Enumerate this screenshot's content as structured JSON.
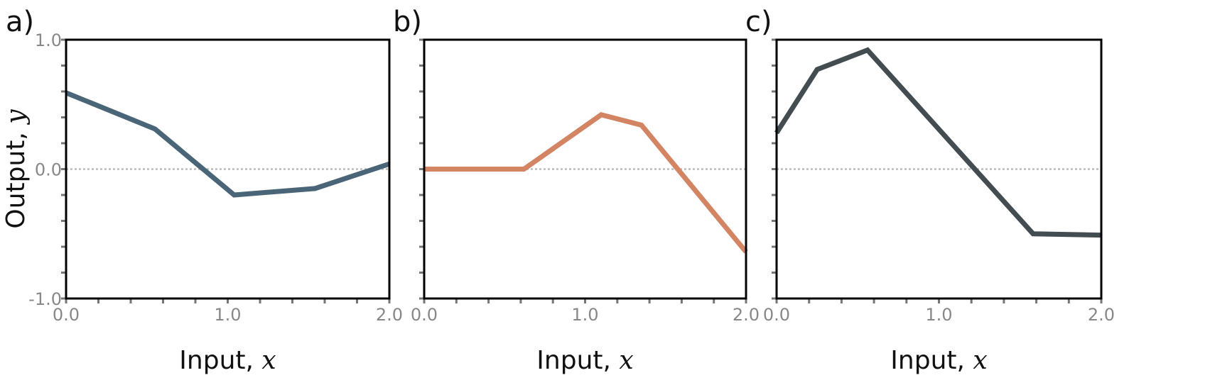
{
  "chart_data": [
    {
      "type": "line",
      "panel": "a)",
      "xlabel": "Input, x",
      "ylabel": "Output, y",
      "xlim": [
        0.0,
        2.0
      ],
      "ylim": [
        -1.0,
        1.0
      ],
      "xticks": [
        "0.0",
        "1.0",
        "2.0"
      ],
      "yticks": [
        "-1.0",
        "0.0",
        "1.0"
      ],
      "grid": false,
      "reference_line": {
        "y": 0.0,
        "style": "dotted",
        "color": "#bbbbbb"
      },
      "series": [
        {
          "name": "a",
          "color": "#4a6578",
          "x": [
            0.0,
            0.55,
            1.04,
            1.54,
            2.0
          ],
          "y": [
            0.59,
            0.31,
            -0.2,
            -0.15,
            0.04
          ]
        }
      ]
    },
    {
      "type": "line",
      "panel": "b)",
      "xlabel": "Input, x",
      "ylabel": "",
      "xlim": [
        0.0,
        2.0
      ],
      "ylim": [
        -1.0,
        1.0
      ],
      "xticks": [
        "0.0",
        "1.0",
        "2.0"
      ],
      "yticks": [],
      "grid": false,
      "reference_line": {
        "y": 0.0,
        "style": "dotted",
        "color": "#bbbbbb"
      },
      "series": [
        {
          "name": "b",
          "color": "#d38463",
          "x": [
            0.0,
            0.62,
            1.1,
            1.35,
            2.0
          ],
          "y": [
            0.0,
            0.0,
            0.42,
            0.34,
            -0.64
          ]
        }
      ]
    },
    {
      "type": "line",
      "panel": "c)",
      "xlabel": "Input, x",
      "ylabel": "",
      "xlim": [
        0.0,
        2.0
      ],
      "ylim": [
        -1.0,
        1.0
      ],
      "xticks": [
        "0.0",
        "1.0",
        "2.0"
      ],
      "yticks": [],
      "grid": false,
      "reference_line": {
        "y": 0.0,
        "style": "dotted",
        "color": "#bbbbbb"
      },
      "series": [
        {
          "name": "c",
          "color": "#434c51",
          "x": [
            0.0,
            0.25,
            0.56,
            1.58,
            2.0
          ],
          "y": [
            0.28,
            0.77,
            0.92,
            -0.5,
            -0.51
          ]
        }
      ]
    }
  ],
  "labels": {
    "panel_a": "a)",
    "panel_b": "b)",
    "panel_c": "c)",
    "ylabel_text": "Output, ",
    "ylabel_var": "y",
    "xlabel_text": "Input, ",
    "xlabel_var": "x",
    "ytick_top": "1.0",
    "ytick_mid": "0.0",
    "ytick_bottom": "-1.0",
    "xtick_0": "0.0",
    "xtick_1": "1.0",
    "xtick_2": "2.0"
  }
}
